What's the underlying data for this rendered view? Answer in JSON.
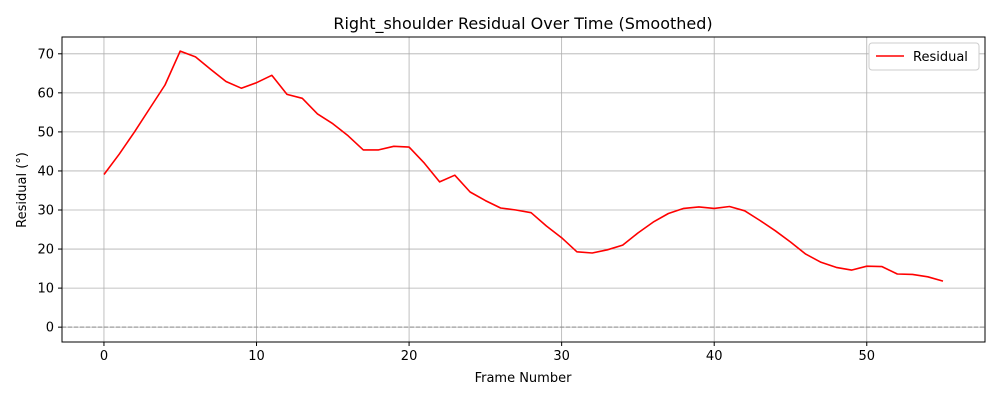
{
  "chart_data": {
    "type": "line",
    "title": "Right_shoulder Residual Over Time (Smoothed)",
    "xlabel": "Frame Number",
    "ylabel": "Residual (°)",
    "xlim": [
      -2.75,
      57.75
    ],
    "ylim": [
      -3.8,
      74.3
    ],
    "xticks": [
      0,
      10,
      20,
      30,
      40,
      50
    ],
    "yticks": [
      0,
      10,
      20,
      30,
      40,
      50,
      60,
      70
    ],
    "grid": true,
    "legend_position": "top-right",
    "reference_line": {
      "y": 0,
      "style": "dashed",
      "color": "#888888"
    },
    "series": [
      {
        "name": "Residual",
        "color": "#ff0000",
        "x": [
          0,
          1,
          2,
          3,
          4,
          5,
          6,
          7,
          8,
          9,
          10,
          11,
          12,
          13,
          14,
          15,
          16,
          17,
          18,
          19,
          20,
          21,
          22,
          23,
          24,
          25,
          26,
          27,
          28,
          29,
          30,
          31,
          32,
          33,
          34,
          35,
          36,
          37,
          38,
          39,
          40,
          41,
          42,
          43,
          44,
          45,
          46,
          47,
          48,
          49,
          50,
          51,
          52,
          53,
          54,
          55
        ],
        "values": [
          39.1,
          44.3,
          50.0,
          56.0,
          62.0,
          70.7,
          69.2,
          66.0,
          62.9,
          61.2,
          62.6,
          64.5,
          59.6,
          58.6,
          54.6,
          52.1,
          49.0,
          45.4,
          45.4,
          46.3,
          46.1,
          42.0,
          37.2,
          38.9,
          34.6,
          32.4,
          30.5,
          30.0,
          29.3,
          25.9,
          22.9,
          19.3,
          19.0,
          19.8,
          21.0,
          24.1,
          26.9,
          29.1,
          30.4,
          30.8,
          30.4,
          30.9,
          29.8,
          27.3,
          24.7,
          21.8,
          18.7,
          16.6,
          15.3,
          14.6,
          15.6,
          15.5,
          13.6,
          13.5,
          12.9,
          11.8
        ]
      }
    ]
  }
}
